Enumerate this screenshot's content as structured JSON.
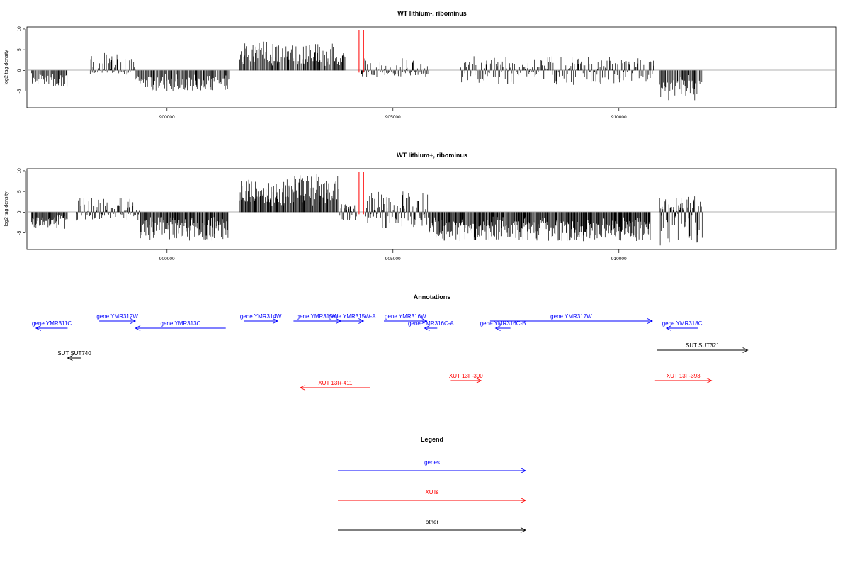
{
  "chart_data": [
    {
      "type": "bar",
      "title": "WT lithium-, ribominus",
      "ylabel": "log2 tag density",
      "xlabel": "",
      "xlim": [
        896900,
        914800
      ],
      "ylim": [
        -9,
        10.5
      ],
      "x_ticks": [
        900000,
        905000,
        910000
      ],
      "y_ticks": [
        10,
        5,
        0,
        -5
      ],
      "markers_x": [
        904250,
        904350
      ],
      "marker_color": "#ff0000",
      "segments": [
        {
          "x0": 897000,
          "x1": 897800,
          "min": -4.2,
          "max": 0
        },
        {
          "x0": 898300,
          "x1": 899300,
          "min": -1,
          "max": 4.5
        },
        {
          "x0": 899300,
          "x1": 901400,
          "min": -5,
          "max": 0
        },
        {
          "x0": 901600,
          "x1": 902700,
          "min": 0,
          "max": 7
        },
        {
          "x0": 902700,
          "x1": 903950,
          "min": 0,
          "max": 6.5
        },
        {
          "x0": 904300,
          "x1": 905800,
          "min": -1.5,
          "max": 3
        },
        {
          "x0": 906500,
          "x1": 910800,
          "min": -3.5,
          "max": 3.5
        },
        {
          "x0": 910900,
          "x1": 911850,
          "min": -7.5,
          "max": 0
        }
      ]
    },
    {
      "type": "bar",
      "title": "WT lithium+, ribominus",
      "ylabel": "log2 tag density",
      "xlabel": "",
      "xlim": [
        896900,
        914800
      ],
      "ylim": [
        -9,
        10.5
      ],
      "x_ticks": [
        900000,
        905000,
        910000
      ],
      "y_ticks": [
        10,
        5,
        0,
        -5
      ],
      "markers_x": [
        904250,
        904350
      ],
      "marker_color": "#ff0000",
      "segments": [
        {
          "x0": 897000,
          "x1": 897800,
          "min": -4,
          "max": 0
        },
        {
          "x0": 898000,
          "x1": 899400,
          "min": -2,
          "max": 3.5
        },
        {
          "x0": 899400,
          "x1": 901350,
          "min": -7,
          "max": 0
        },
        {
          "x0": 901600,
          "x1": 902700,
          "min": 0,
          "max": 8
        },
        {
          "x0": 902700,
          "x1": 903800,
          "min": 0,
          "max": 9.5
        },
        {
          "x0": 903800,
          "x1": 904200,
          "min": -2,
          "max": 2
        },
        {
          "x0": 904400,
          "x1": 905800,
          "min": -4,
          "max": 5
        },
        {
          "x0": 905800,
          "x1": 910700,
          "min": -7,
          "max": 0
        },
        {
          "x0": 910900,
          "x1": 911850,
          "min": -8.5,
          "max": 4
        }
      ]
    }
  ],
  "annotations": {
    "title": "Annotations",
    "items": [
      {
        "label": "gene YMR311C",
        "color": "#0000ff",
        "dir": "left",
        "x0": 897100,
        "x1": 897800,
        "row": 1
      },
      {
        "label": "gene YMR312W",
        "color": "#0000ff",
        "dir": "right",
        "x0": 898500,
        "x1": 899300,
        "row": 0
      },
      {
        "label": "gene YMR313C",
        "color": "#0000ff",
        "dir": "left",
        "x0": 899300,
        "x1": 901300,
        "row": 1
      },
      {
        "label": "gene YMR314W",
        "color": "#0000ff",
        "dir": "right",
        "x0": 901700,
        "x1": 902450,
        "row": 0
      },
      {
        "label": "gene YMR315W",
        "color": "#0000ff",
        "dir": "right",
        "x0": 902800,
        "x1": 903850,
        "row": 0
      },
      {
        "label": "gene YMR315W-A",
        "color": "#0000ff",
        "dir": "right",
        "x0": 903850,
        "x1": 904350,
        "row": 0
      },
      {
        "label": "gene YMR316W",
        "color": "#0000ff",
        "dir": "right",
        "x0": 904800,
        "x1": 905750,
        "row": 0
      },
      {
        "label": "gene YMR316C-A",
        "color": "#0000ff",
        "dir": "left",
        "x0": 905700,
        "x1": 905980,
        "row": 1
      },
      {
        "label": "gene YMR316C-B",
        "color": "#0000ff",
        "dir": "left",
        "x0": 907270,
        "x1": 907600,
        "row": 1
      },
      {
        "label": "gene YMR317W",
        "color": "#0000ff",
        "dir": "right",
        "x0": 907150,
        "x1": 910740,
        "row": 0
      },
      {
        "label": "gene YMR318C",
        "color": "#0000ff",
        "dir": "left",
        "x0": 911050,
        "x1": 911750,
        "row": 1
      },
      {
        "label": "SUT SUT740",
        "color": "#000000",
        "dir": "left",
        "x0": 897800,
        "x1": 898100,
        "row": 3
      },
      {
        "label": "SUT SUT321",
        "color": "#000000",
        "dir": "right",
        "x0": 910850,
        "x1": 912850,
        "row": 2
      },
      {
        "label": "XUT 13R-411",
        "color": "#ff0000",
        "dir": "left",
        "x0": 902950,
        "x1": 904500,
        "row": 5
      },
      {
        "label": "XUT 13F-390",
        "color": "#ff0000",
        "dir": "right",
        "x0": 906280,
        "x1": 906950,
        "row": 4
      },
      {
        "label": "XUT 13F-393",
        "color": "#ff0000",
        "dir": "right",
        "x0": 910800,
        "x1": 912050,
        "row": 4
      }
    ]
  },
  "legend": {
    "title": "Legend",
    "items": [
      {
        "label": "genes",
        "color": "#0000ff"
      },
      {
        "label": "XUTs",
        "color": "#ff0000"
      },
      {
        "label": "other",
        "color": "#000000"
      }
    ]
  }
}
